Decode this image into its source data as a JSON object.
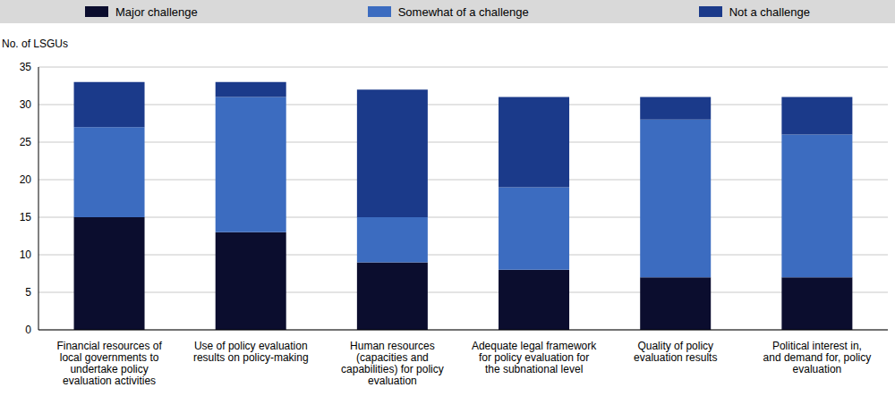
{
  "chart_data": {
    "type": "bar",
    "stacked": true,
    "grid": true,
    "legend": "top",
    "ylabel": "No. of LSGUs",
    "categories": [
      "Financial resources of local governments to undertake policy evaluation activities",
      "Use of policy evaluation results on policy-making",
      "Human resources (capacities and capabilities) for policy evaluation",
      "Adequate legal framework for policy evaluation for the subnational level",
      "Quality of policy evaluation results",
      "Political interest in, and demand for, policy evaluation"
    ],
    "series": [
      {
        "name": "Major challenge",
        "color": "#0b0d2e",
        "values": [
          15,
          13,
          9,
          8,
          7,
          7
        ]
      },
      {
        "name": "Somewhat of a challenge",
        "color": "#3c6cc0",
        "values": [
          12,
          18,
          6,
          11,
          21,
          19
        ]
      },
      {
        "name": "Not a challenge",
        "color": "#1b3a8a",
        "values": [
          6,
          2,
          17,
          12,
          3,
          5
        ]
      }
    ],
    "ylim": [
      0,
      35
    ],
    "yticks": [
      0,
      5,
      10,
      15,
      20,
      25,
      30,
      35
    ]
  }
}
